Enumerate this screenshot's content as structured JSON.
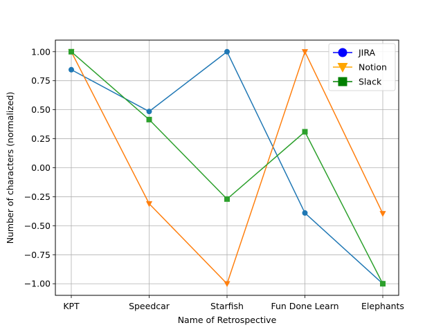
{
  "chart_data": {
    "type": "line",
    "title": "",
    "xlabel": "Name of Retrospective",
    "ylabel": "Number of characters (normalized)",
    "categories": [
      "KPT",
      "Speedcar",
      "Starfish",
      "Fun Done Learn",
      "Elephants"
    ],
    "ylim": [
      -1.1,
      1.1
    ],
    "yticks": [
      -1.0,
      -0.75,
      -0.5,
      -0.25,
      0.0,
      0.25,
      0.5,
      0.75,
      1.0
    ],
    "ytick_labels": [
      "−1.00",
      "−0.75",
      "−0.50",
      "−0.25",
      "0.00",
      "0.25",
      "0.50",
      "0.75",
      "1.00"
    ],
    "grid": true,
    "legend_position": "top-right",
    "series": [
      {
        "name": "JIRA",
        "values": [
          0.845,
          0.485,
          1.0,
          -0.39,
          -1.0
        ],
        "color": "#1f77b4",
        "marker": "circle",
        "legend_color": "#0000ff"
      },
      {
        "name": "Notion",
        "values": [
          1.0,
          -0.31,
          -1.0,
          1.0,
          -0.395
        ],
        "color": "#ff7f0e",
        "marker": "triangle-down",
        "legend_color": "#ffa500"
      },
      {
        "name": "Slack",
        "values": [
          1.0,
          0.415,
          -0.27,
          0.31,
          -1.0
        ],
        "color": "#2ca02c",
        "marker": "square",
        "legend_color": "#008000"
      }
    ]
  }
}
